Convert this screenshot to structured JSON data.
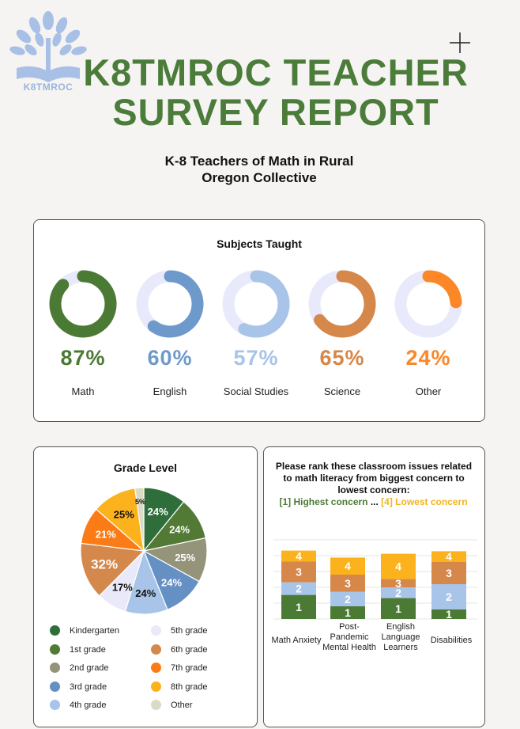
{
  "header": {
    "logo_text": "K8TMROC",
    "title_line1": "K8TMROC TEACHER",
    "title_line2": "SURVEY REPORT",
    "subtitle_line1": "K-8 Teachers of Math in Rural",
    "subtitle_line2": "Oregon Collective"
  },
  "colors": {
    "title_green": "#4b7c3a",
    "ring_track": "#e8e9fa"
  },
  "chart_data": [
    {
      "type": "donut",
      "title": "Subjects Taught",
      "items": [
        {
          "label": "Math",
          "value": 87,
          "display": "87%",
          "color": "#4b7a35"
        },
        {
          "label": "English",
          "value": 60,
          "display": "60%",
          "color": "#6e9acb"
        },
        {
          "label": "Social Studies",
          "value": 57,
          "display": "57%",
          "color": "#a8c4e8"
        },
        {
          "label": "Science",
          "value": 65,
          "display": "65%",
          "color": "#d6874a"
        },
        {
          "label": "Other",
          "value": 24,
          "display": "24%",
          "color": "#fb8727"
        }
      ]
    },
    {
      "type": "pie",
      "title": "Grade Level",
      "slices": [
        {
          "label": "Kindergarten",
          "value": 24,
          "display": "24%",
          "color": "#2f6e3b",
          "text_color": "#ffffff"
        },
        {
          "label": "1st grade",
          "value": 24,
          "display": "24%",
          "color": "#527a34",
          "text_color": "#ffffff"
        },
        {
          "label": "2nd grade",
          "value": 25,
          "display": "25%",
          "color": "#939479",
          "text_color": "#ffffff"
        },
        {
          "label": "3rd grade",
          "value": 24,
          "display": "24%",
          "color": "#6590c4",
          "text_color": "#ffffff"
        },
        {
          "label": "4th grade",
          "value": 24,
          "display": "24%",
          "color": "#a8c4e8",
          "text_color": "#111111"
        },
        {
          "label": "5th grade",
          "value": 17,
          "display": "17%",
          "color": "#e9e9fa",
          "text_color": "#111111"
        },
        {
          "label": "6th grade",
          "value": 32,
          "display": "32%",
          "color": "#d4884c",
          "text_color": "#ffffff"
        },
        {
          "label": "7th grade",
          "value": 21,
          "display": "21%",
          "color": "#fb7c17",
          "text_color": "#ffffff"
        },
        {
          "label": "8th grade",
          "value": 25,
          "display": "25%",
          "color": "#fcb21c",
          "text_color": "#111111"
        },
        {
          "label": "Other",
          "value": 5,
          "display": "5%",
          "color": "#dadbc7",
          "text_color": "#111111"
        }
      ]
    },
    {
      "type": "stacked_bar",
      "title": "Please rank these classroom issues related to math literacy from biggest concern to lowest concern:",
      "key_high": "[1] Highest concern",
      "key_sep": " ... ",
      "key_low": "[4] Lowest concern",
      "categories": [
        "Math Anxiety",
        "Post-Pandemic Mental Health",
        "English Language Learners",
        "Disabilities"
      ],
      "series": [
        {
          "name": "1",
          "color": "#4b7a35",
          "values": [
            38,
            20,
            33,
            15
          ]
        },
        {
          "name": "2",
          "color": "#a8c4e8",
          "values": [
            20,
            23,
            17,
            40
          ]
        },
        {
          "name": "3",
          "color": "#d6874a",
          "values": [
            33,
            27,
            13,
            35
          ]
        },
        {
          "name": "4",
          "color": "#fcb21c",
          "values": [
            17,
            27,
            40,
            17
          ]
        }
      ]
    }
  ]
}
